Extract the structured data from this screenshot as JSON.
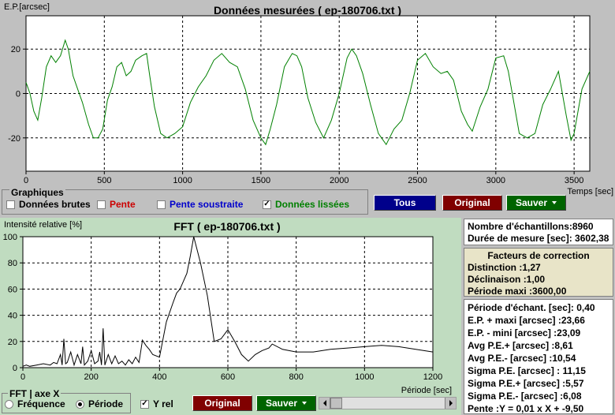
{
  "top_chart": {
    "title": "Données mesurées ( ep-180706.txt )",
    "ylabel": "E.P.[arcsec]",
    "xlabel": "Temps [sec]",
    "x_ticks": [
      "0",
      "500",
      "1000",
      "1500",
      "2000",
      "2500",
      "3000",
      "3500"
    ],
    "y_ticks": [
      "20",
      "0",
      "-20"
    ],
    "line_color": "#008000"
  },
  "graphiques": {
    "label": "Graphiques",
    "donnees_brutes": "Données brutes",
    "pente": "Pente",
    "pente_soustraite": "Pente soustraite",
    "donnees_lissees": "Données lissées",
    "tous": "Tous",
    "original": "Original",
    "sauver": "Sauver"
  },
  "fft": {
    "title": "FFT ( ep-180706.txt )",
    "ylabel": "Intensité relative [%]",
    "xlabel": "Période [sec]",
    "x_ticks": [
      "0",
      "200",
      "400",
      "600",
      "800",
      "1000",
      "1200"
    ],
    "y_ticks": [
      "100",
      "80",
      "60",
      "40",
      "20",
      "0"
    ],
    "axe_label": "FFT | axe X",
    "frequence": "Fréquence",
    "periode": "Période",
    "yrel": "Y rel",
    "original": "Original",
    "sauver": "Sauver"
  },
  "info": {
    "samples": "Nombre d'échantillons:8960",
    "duration": "Durée de mesure [sec]: 3602,38"
  },
  "correction": {
    "title": "Facteurs de correction",
    "distinction": "Distinction :1,27",
    "declinaison": "Déclinaison :1,00",
    "periode_maxi": "Période maxi :3600,00"
  },
  "stats": {
    "periode_echant": "Période d'échant. [sec]: 0,40",
    "ep_maxi": "E.P. + maxi [arcsec] :23,66",
    "ep_mini": "E.P. - mini [arcsec] :23,09",
    "avg_pos": "Avg P.E.+ [arcsec] :8,61",
    "avg_neg": "Avg P.E.- [arcsec] :10,54",
    "sigma": "Sigma P.E. [arcsec] : 11,15",
    "sigma_pos": "Sigma P.E.+ [arcsec] :5,57",
    "sigma_neg": "Sigma P.E.- [arcsec] :6,08",
    "pente": "Pente :Y = 0,01 x X + -9,50"
  },
  "chart_data": [
    {
      "type": "line",
      "title": "Données mesurées ( ep-180706.txt )",
      "xlabel": "Temps [sec]",
      "ylabel": "E.P.[arcsec]",
      "xlim": [
        0,
        3600
      ],
      "ylim": [
        -35,
        35
      ],
      "grid": true,
      "series": [
        {
          "name": "Données lissées",
          "color": "#008000",
          "x": [
            0,
            25,
            50,
            75,
            100,
            130,
            160,
            190,
            220,
            250,
            270,
            300,
            330,
            360,
            400,
            430,
            460,
            490,
            520,
            550,
            580,
            610,
            640,
            670,
            700,
            740,
            770,
            790,
            820,
            860,
            900,
            950,
            1000,
            1050,
            1100,
            1150,
            1200,
            1250,
            1300,
            1350,
            1400,
            1450,
            1500,
            1530,
            1560,
            1600,
            1650,
            1700,
            1730,
            1760,
            1800,
            1850,
            1900,
            1950,
            2000,
            2050,
            2080,
            2110,
            2150,
            2200,
            2250,
            2300,
            2350,
            2400,
            2450,
            2500,
            2550,
            2600,
            2650,
            2690,
            2730,
            2780,
            2820,
            2850,
            2900,
            2950,
            3000,
            3050,
            3080,
            3110,
            3150,
            3200,
            3250,
            3300,
            3350,
            3400,
            3450,
            3480,
            3500,
            3550,
            3600
          ],
          "y": [
            5,
            0,
            -8,
            -12,
            -2,
            12,
            17,
            14,
            17,
            24,
            20,
            8,
            2,
            -4,
            -14,
            -20,
            -20,
            -16,
            -3,
            3,
            12,
            14,
            8,
            10,
            15,
            17,
            18,
            8,
            -6,
            -18,
            -20,
            -18,
            -15,
            -4,
            3,
            8,
            15,
            18,
            14,
            12,
            2,
            -12,
            -20,
            -23,
            -16,
            -5,
            12,
            18,
            17,
            12,
            -2,
            -13,
            -20,
            -12,
            0,
            16,
            20,
            17,
            9,
            -5,
            -18,
            -23,
            -16,
            -12,
            0,
            15,
            18,
            12,
            9,
            10,
            6,
            -8,
            -14,
            -17,
            -6,
            2,
            16,
            17,
            10,
            -2,
            -18,
            -20,
            -18,
            -5,
            2,
            10,
            -10,
            -21,
            -18,
            2,
            10
          ]
        }
      ]
    },
    {
      "type": "line",
      "title": "FFT ( ep-180706.txt )",
      "xlabel": "Période [sec]",
      "ylabel": "Intensité relative [%]",
      "xlim": [
        0,
        1200
      ],
      "ylim": [
        0,
        100
      ],
      "grid": true,
      "series": [
        {
          "name": "FFT",
          "color": "#000000",
          "x": [
            0,
            10,
            20,
            40,
            60,
            80,
            90,
            100,
            110,
            115,
            120,
            125,
            130,
            140,
            150,
            160,
            170,
            175,
            180,
            190,
            200,
            210,
            220,
            225,
            230,
            235,
            240,
            250,
            260,
            270,
            280,
            290,
            300,
            310,
            320,
            330,
            340,
            350,
            360,
            370,
            380,
            400,
            420,
            440,
            450,
            460,
            480,
            490,
            500,
            510,
            520,
            540,
            560,
            580,
            600,
            620,
            640,
            660,
            680,
            700,
            720,
            730,
            760,
            800,
            850,
            900,
            950,
            1000,
            1050,
            1100,
            1150,
            1200
          ],
          "y": [
            1,
            2,
            1,
            2,
            3,
            2,
            4,
            3,
            10,
            2,
            22,
            3,
            4,
            12,
            2,
            10,
            3,
            16,
            2,
            5,
            13,
            3,
            5,
            12,
            2,
            30,
            2,
            10,
            3,
            9,
            3,
            5,
            2,
            6,
            3,
            8,
            4,
            21,
            17,
            14,
            10,
            8,
            35,
            50,
            57,
            60,
            72,
            85,
            100,
            90,
            80,
            55,
            20,
            22,
            29,
            20,
            10,
            5,
            10,
            13,
            15,
            18,
            14,
            12,
            12,
            14,
            15,
            16,
            17,
            16,
            14,
            12
          ]
        }
      ]
    }
  ]
}
